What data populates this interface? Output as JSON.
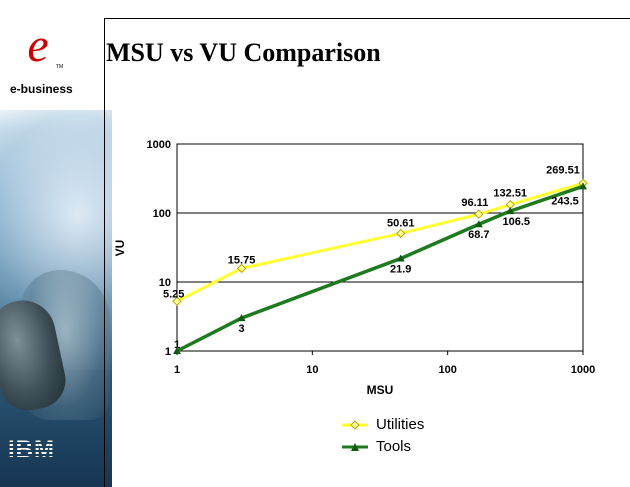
{
  "slide": {
    "title": "MSU vs VU Comparison",
    "brand": "e-business",
    "company": "IBM",
    "logo_glyph": "e",
    "tm": "TM"
  },
  "colors": {
    "utilities": "#ffff33",
    "utilities_marker": "#e6d400",
    "tools": "#1e7a1e",
    "tools_marker": "#0f5a0f"
  },
  "chart_data": {
    "type": "line",
    "xlabel": "MSU",
    "ylabel": "VU",
    "x_scale": "log",
    "y_scale": "log",
    "xlim": [
      1,
      1000
    ],
    "ylim": [
      1,
      1000
    ],
    "x_ticks": [
      "1",
      "10",
      "100",
      "1000"
    ],
    "y_ticks": [
      "1",
      "10",
      "100",
      "1000"
    ],
    "grid": "horizontal",
    "legend": "bottom",
    "series": [
      {
        "name": "Utilities",
        "marker": "diamond",
        "points": [
          {
            "x": 1,
            "y": 5.25,
            "label": "5.25"
          },
          {
            "x": 3,
            "y": 15.75,
            "label": "15.75"
          },
          {
            "x": 45,
            "y": 50.61,
            "label": "50.61"
          },
          {
            "x": 170,
            "y": 96.11,
            "label": "96.11"
          },
          {
            "x": 290,
            "y": 132.51,
            "label": "132.51"
          },
          {
            "x": 1000,
            "y": 269.51,
            "label": "269.51"
          }
        ]
      },
      {
        "name": "Tools",
        "marker": "triangle",
        "points": [
          {
            "x": 1,
            "y": 1,
            "label": "1"
          },
          {
            "x": 3,
            "y": 3,
            "label": "3"
          },
          {
            "x": 45,
            "y": 21.9,
            "label": "21.9"
          },
          {
            "x": 170,
            "y": 68.7,
            "label": "68.7"
          },
          {
            "x": 290,
            "y": 106.5,
            "label": "106.5"
          },
          {
            "x": 1000,
            "y": 243.5,
            "label": "243.5"
          }
        ]
      }
    ]
  }
}
